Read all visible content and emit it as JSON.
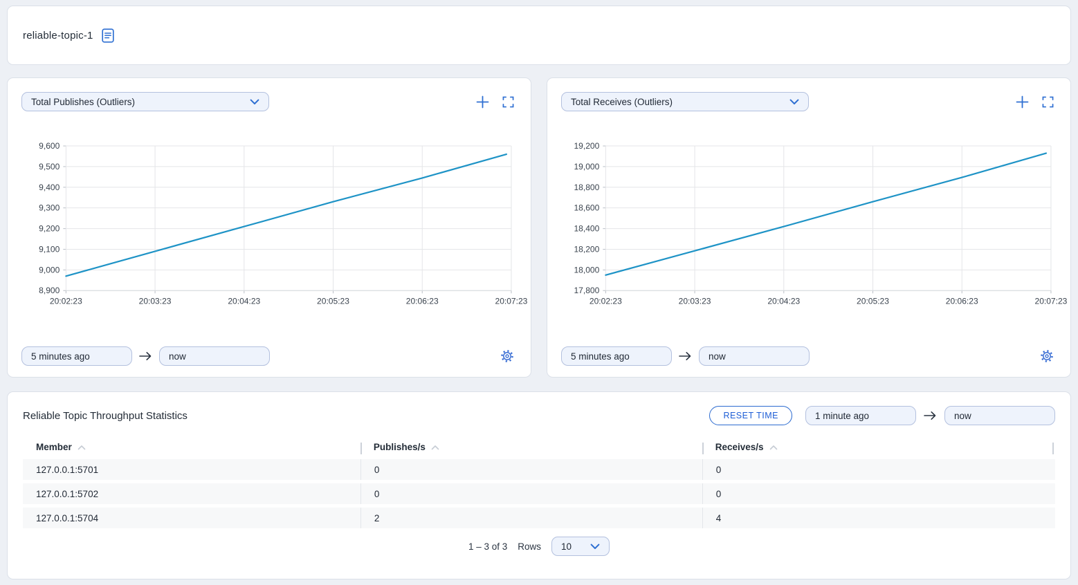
{
  "colors": {
    "accent_blue": "#2e6fd2",
    "line_blue": "#1e93c6",
    "input_bg": "#eef3fc",
    "input_border": "#b3c0de",
    "row_bg": "#f7f8f9",
    "grid": "#e4e5e8"
  },
  "header": {
    "title": "reliable-topic-1",
    "icon": "document-icon"
  },
  "charts": [
    {
      "from": "5 minutes ago",
      "to": "now"
    },
    {
      "from": "5 minutes ago",
      "to": "now"
    }
  ],
  "chart_data": [
    {
      "type": "line",
      "title": "Total Publishes (Outliers)",
      "x": [
        "20:02:23",
        "20:03:23",
        "20:04:23",
        "20:05:23",
        "20:06:23",
        "20:07:23"
      ],
      "series": [
        {
          "name": "Total Publishes (Outliers)",
          "values": [
            8970,
            9090,
            9210,
            9330,
            9445,
            9560
          ]
        }
      ],
      "ylim": [
        8900,
        9600
      ],
      "yticks": [
        8900,
        9000,
        9100,
        9200,
        9300,
        9400,
        9500,
        9600
      ],
      "xlabel": "",
      "ylabel": "",
      "grid": true,
      "legend": "none",
      "line_color": "#1e93c6"
    },
    {
      "type": "line",
      "title": "Total Receives (Outliers)",
      "x": [
        "20:02:23",
        "20:03:23",
        "20:04:23",
        "20:05:23",
        "20:06:23",
        "20:07:23"
      ],
      "series": [
        {
          "name": "Total Receives (Outliers)",
          "values": [
            17950,
            18185,
            18420,
            18660,
            18895,
            19130
          ]
        }
      ],
      "ylim": [
        17800,
        19200
      ],
      "yticks": [
        17800,
        18000,
        18200,
        18400,
        18600,
        18800,
        19000,
        19200
      ],
      "xlabel": "",
      "ylabel": "",
      "grid": true,
      "legend": "none",
      "line_color": "#1e93c6"
    }
  ],
  "table": {
    "title": "Reliable Topic Throughput Statistics",
    "reset_button_label": "RESET TIME",
    "time_from": "1 minute ago",
    "time_to": "now",
    "columns": [
      "Member",
      "Publishes/s",
      "Receives/s"
    ],
    "rows": [
      [
        "127.0.0.1:5701",
        "0",
        "0"
      ],
      [
        "127.0.0.1:5702",
        "0",
        "0"
      ],
      [
        "127.0.0.1:5704",
        "2",
        "4"
      ]
    ],
    "pagination": {
      "range_text": "1 – 3 of 3",
      "rows_label": "Rows",
      "page_size": "10"
    }
  }
}
